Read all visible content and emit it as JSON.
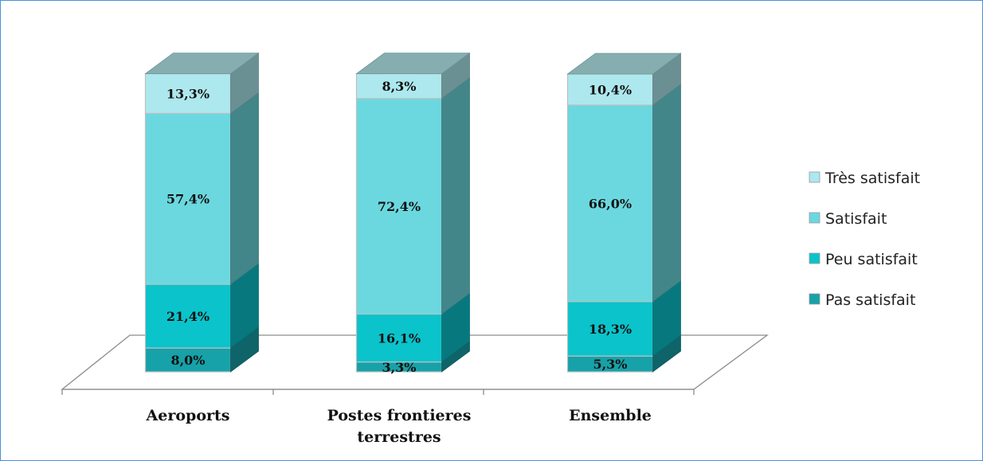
{
  "chart_data": {
    "type": "bar",
    "stacked": true,
    "three_d": true,
    "categories": [
      "Aeroports",
      "Postes frontieres terrestres",
      "Ensemble"
    ],
    "category_lines": [
      [
        "Aeroports"
      ],
      [
        "Postes frontieres",
        "terrestres"
      ],
      [
        "Ensemble"
      ]
    ],
    "series": [
      {
        "name": "Pas satisfait",
        "values": [
          8.0,
          3.3,
          5.3
        ],
        "labels": [
          "8,0%",
          "3,3%",
          "5,3%"
        ],
        "color": "#16A2A8"
      },
      {
        "name": "Peu satisfait",
        "values": [
          21.4,
          16.1,
          18.3
        ],
        "labels": [
          "21,4%",
          "16,1%",
          "18,3%"
        ],
        "color": "#0BC3CB"
      },
      {
        "name": "Satisfait",
        "values": [
          57.4,
          72.4,
          66.0
        ],
        "labels": [
          "57,4%",
          "72,4%",
          "66,0%"
        ],
        "color": "#6BD8DF"
      },
      {
        "name": "Très satisfait",
        "values": [
          13.3,
          8.3,
          10.4
        ],
        "labels": [
          "13,3%",
          "8,3%",
          "10,4%"
        ],
        "color": "#ADE8EE"
      }
    ],
    "legend_order": [
      "Très satisfait",
      "Satisfait",
      "Peu satisfait",
      "Pas satisfait"
    ],
    "legend_position": "right",
    "ylim": [
      0,
      100
    ],
    "grid": false
  },
  "colors": {
    "border": "#4A90D9",
    "floor_stroke": "#8C8C8C",
    "bar_outline": "#BFBFBF"
  }
}
